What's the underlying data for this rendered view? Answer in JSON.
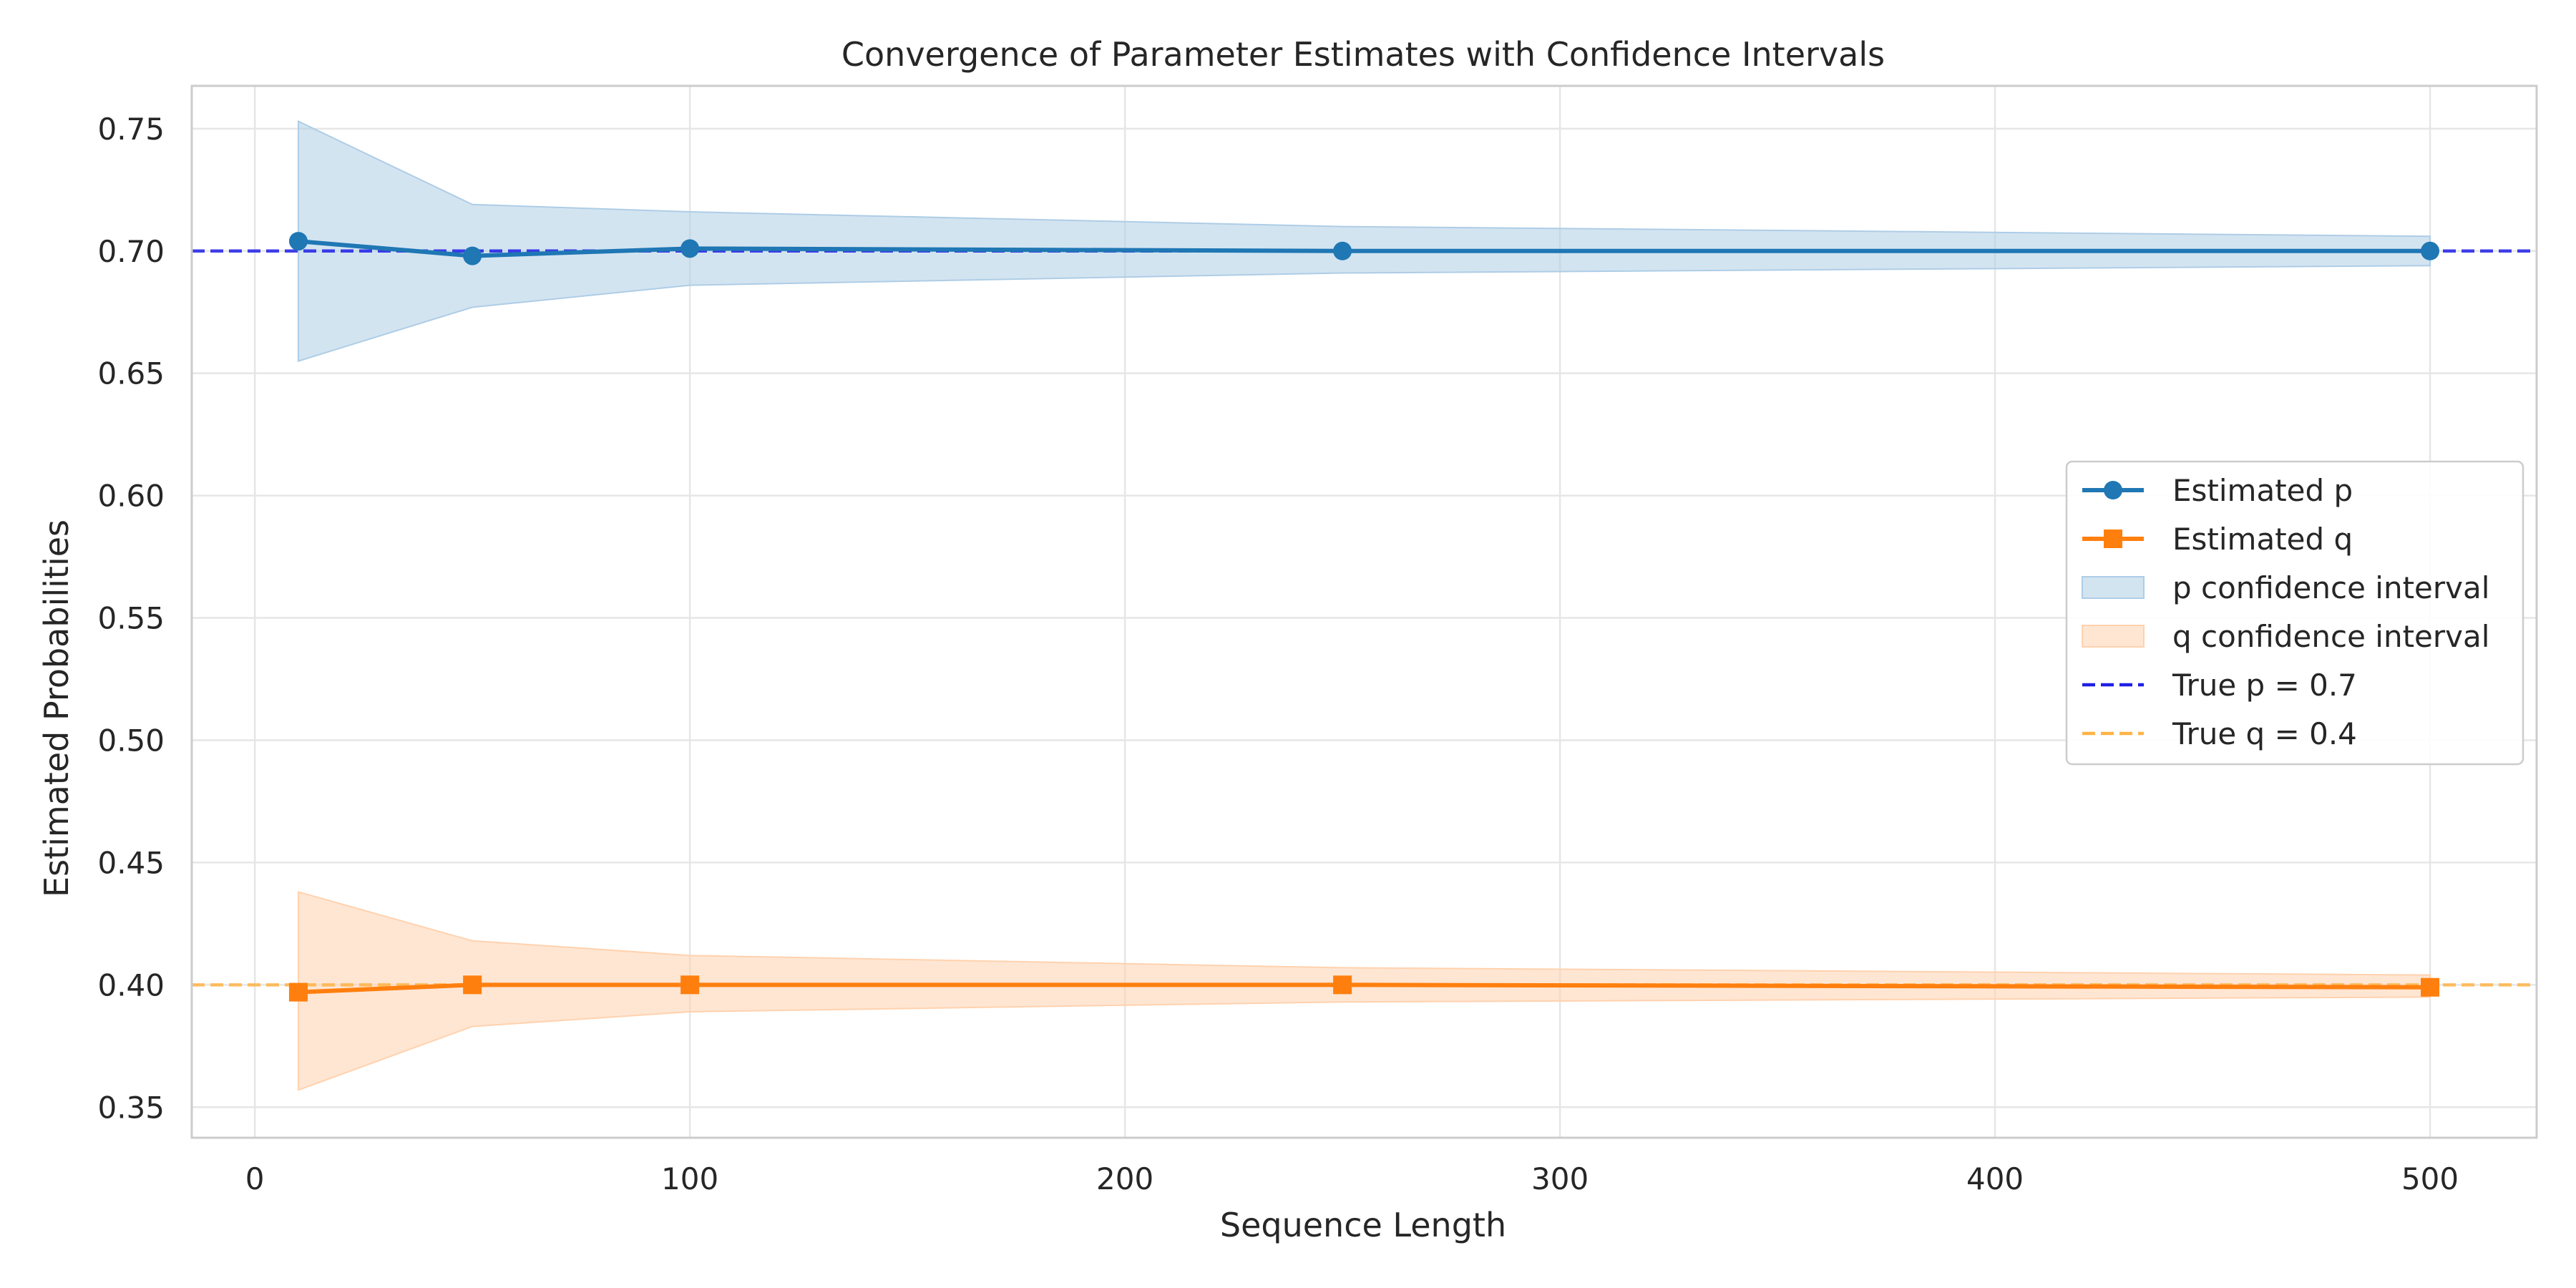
{
  "chart_data": {
    "type": "line",
    "title": "Convergence of Parameter Estimates with Confidence Intervals",
    "xlabel": "Sequence Length",
    "ylabel": "Estimated Probabilities",
    "xlim": [
      -14.5,
      524.5
    ],
    "ylim": [
      0.3375,
      0.7675
    ],
    "xticks": [
      0,
      100,
      200,
      300,
      400,
      500
    ],
    "yticks": [
      0.35,
      0.4,
      0.45,
      0.5,
      0.55,
      0.6,
      0.65,
      0.7,
      0.75
    ],
    "grid": true,
    "legend_position": "center-right",
    "x": [
      10,
      50,
      100,
      250,
      500
    ],
    "series": [
      {
        "name": "Estimated p",
        "marker": "circle",
        "color": "#1f77b4",
        "values": [
          0.704,
          0.698,
          0.701,
          0.7,
          0.7
        ],
        "ci_name": "p confidence interval",
        "ci_lower": [
          0.655,
          0.677,
          0.686,
          0.691,
          0.694
        ],
        "ci_upper": [
          0.753,
          0.719,
          0.716,
          0.71,
          0.706
        ],
        "ci_color": "#aecde6"
      },
      {
        "name": "Estimated q",
        "marker": "square",
        "color": "#ff7f0e",
        "values": [
          0.397,
          0.4,
          0.4,
          0.4,
          0.399
        ],
        "ci_name": "q confidence interval",
        "ci_lower": [
          0.357,
          0.383,
          0.389,
          0.393,
          0.395
        ],
        "ci_upper": [
          0.438,
          0.418,
          0.412,
          0.407,
          0.404
        ],
        "ci_color": "#ffd2af"
      }
    ],
    "reference_lines": [
      {
        "name": "True p = 0.7",
        "value": 0.7,
        "color": "#1f1fe6"
      },
      {
        "name": "True q = 0.4",
        "value": 0.4,
        "color": "#ffb347"
      }
    ]
  }
}
